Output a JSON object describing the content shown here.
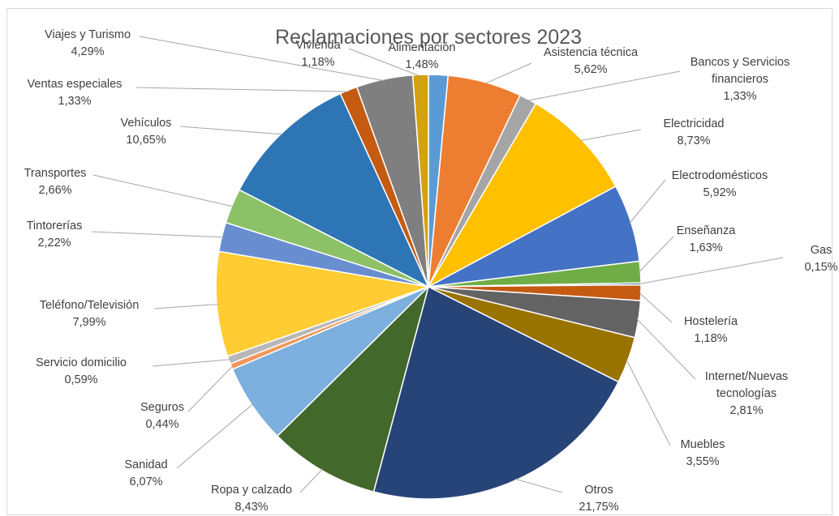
{
  "chart_data": {
    "type": "pie",
    "title": "Reclamaciones por sectores 2023",
    "slices": [
      {
        "label": "Alimentación",
        "value": 1.48,
        "display": "1,48%",
        "color": "#5b9bd5"
      },
      {
        "label": "Asistencia técnica",
        "value": 5.62,
        "display": "5,62%",
        "color": "#ed7d31"
      },
      {
        "label": "Bancos y Servicios financieros",
        "value": 1.33,
        "display": "1,33%",
        "color": "#a5a5a5"
      },
      {
        "label": "Electricidad",
        "value": 8.73,
        "display": "8,73%",
        "color": "#ffc000"
      },
      {
        "label": "Electrodomésticos",
        "value": 5.92,
        "display": "5,92%",
        "color": "#4472c4"
      },
      {
        "label": "Enseñanza",
        "value": 1.63,
        "display": "1,63%",
        "color": "#70ad47"
      },
      {
        "label": "Gas",
        "value": 0.15,
        "display": "0,15%",
        "color": "#255e91"
      },
      {
        "label": "Hostelería",
        "value": 1.18,
        "display": "1,18%",
        "color": "#c55a11"
      },
      {
        "label": "Internet/Nuevas tecnologías",
        "value": 2.81,
        "display": "2,81%",
        "color": "#636363"
      },
      {
        "label": "Muebles",
        "value": 3.55,
        "display": "3,55%",
        "color": "#997300"
      },
      {
        "label": "Otros",
        "value": 21.75,
        "display": "21,75%",
        "color": "#264478"
      },
      {
        "label": "Ropa y calzado",
        "value": 8.43,
        "display": "8,43%",
        "color": "#43682b"
      },
      {
        "label": "Sanidad",
        "value": 6.07,
        "display": "6,07%",
        "color": "#7cafdd"
      },
      {
        "label": "Seguros",
        "value": 0.44,
        "display": "0,44%",
        "color": "#f1975a"
      },
      {
        "label": "Servicio domicilio",
        "value": 0.59,
        "display": "0,59%",
        "color": "#b7b7b7"
      },
      {
        "label": "Teléfono/Televisión",
        "value": 7.99,
        "display": "7,99%",
        "color": "#ffcd33"
      },
      {
        "label": "Tintorerías",
        "value": 2.22,
        "display": "2,22%",
        "color": "#698ed0"
      },
      {
        "label": "Transportes",
        "value": 2.66,
        "display": "2,66%",
        "color": "#8cc168"
      },
      {
        "label": "Vehículos",
        "value": 10.65,
        "display": "10,65%",
        "color": "#2e75b6"
      },
      {
        "label": "Ventas especiales",
        "value": 1.33,
        "display": "1,33%",
        "color": "#c55a11"
      },
      {
        "label": "Viajes y Turismo",
        "value": 4.29,
        "display": "4,29%",
        "color": "#7f7f7f"
      },
      {
        "label": "Vivienda",
        "value": 1.18,
        "display": "1,18%",
        "color": "#d4a20c"
      }
    ],
    "legend": "none"
  }
}
